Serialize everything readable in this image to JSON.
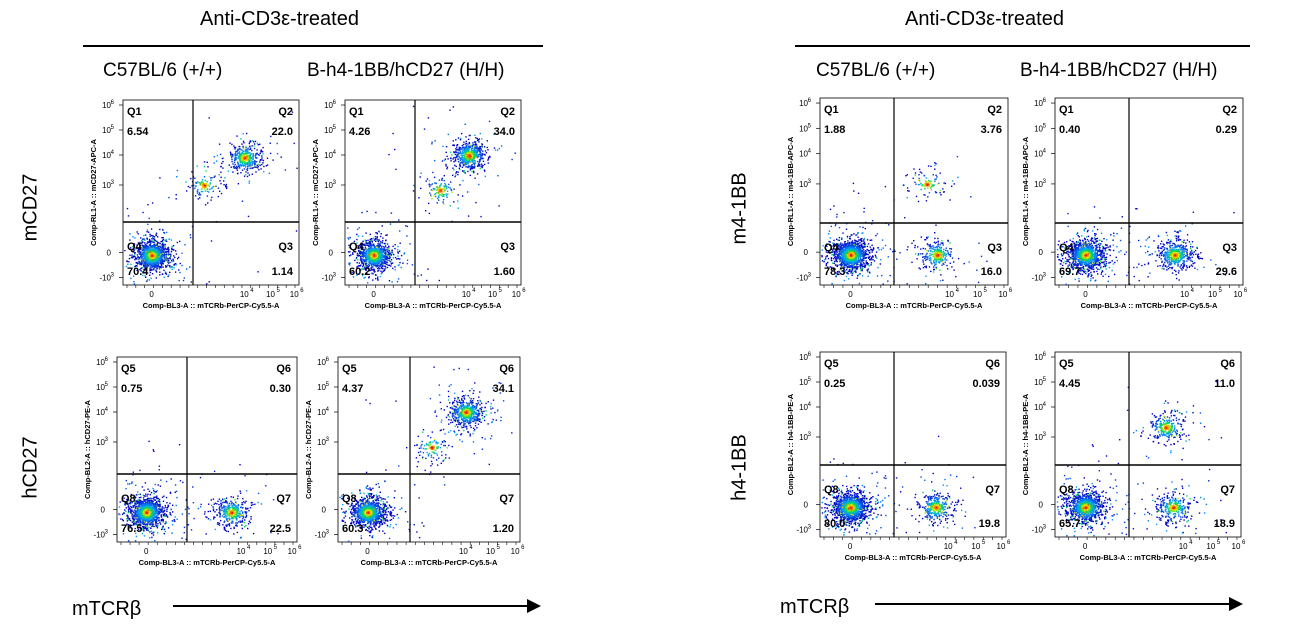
{
  "panels": [
    {
      "header": "Anti-CD3ε-treated",
      "strains": [
        "C57BL/6 (+/+)",
        "B-h4-1BB/hCD27 (H/H)"
      ],
      "rows": [
        "mCD27",
        "hCD27"
      ],
      "x_axis_label": "mTCRβ"
    },
    {
      "header": "Anti-CD3ε-treated",
      "strains": [
        "C57BL/6 (+/+)",
        "B-h4-1BB/hCD27 (H/H)"
      ],
      "rows": [
        "m4-1BB",
        "h4-1BB"
      ],
      "x_axis_label": "mTCRβ"
    }
  ],
  "chart_data": [
    {
      "type": "scatter",
      "marker": "mCD27",
      "strain": "C57BL/6 (+/+)",
      "xlabel": "Comp-BL3-A :: mTCRb-PerCP-Cy5.5-A",
      "ylabel": "Comp-RL1-A :: mCD27-APC-A",
      "quadrants": {
        "Q1": "6.54",
        "Q2": "22.0",
        "Q3": "1.14",
        "Q4": "70.4"
      },
      "populations": [
        {
          "x": 0,
          "y": 0,
          "w": 0.704
        },
        {
          "x": 3.9,
          "y": 3.9,
          "w": 0.22
        },
        {
          "x": 2.2,
          "y": 2.8,
          "w": 0.065
        }
      ]
    },
    {
      "type": "scatter",
      "marker": "mCD27",
      "strain": "B-h4-1BB/hCD27 (H/H)",
      "xlabel": "Comp-BL3-A :: mTCRb-PerCP-Cy5.5-A",
      "ylabel": "Comp-RL1-A :: mCD27-APC-A",
      "quadrants": {
        "Q1": "4.26",
        "Q2": "34.0",
        "Q3": "1.60",
        "Q4": "60.2"
      },
      "populations": [
        {
          "x": 0,
          "y": 0,
          "w": 0.602
        },
        {
          "x": 4.0,
          "y": 4.0,
          "w": 0.34
        },
        {
          "x": 2.8,
          "y": 2.6,
          "w": 0.06
        }
      ]
    },
    {
      "type": "scatter",
      "marker": "hCD27",
      "strain": "C57BL/6 (+/+)",
      "xlabel": "Comp-BL3-A :: mTCRb-PerCP-Cy5.5-A",
      "ylabel": "Comp-BL2-A :: hCD27-PE-A",
      "quadrants": {
        "Q5": "0.75",
        "Q6": "0.30",
        "Q7": "22.5",
        "Q8": "76.5"
      },
      "populations": [
        {
          "x": 0,
          "y": 0,
          "w": 0.765
        },
        {
          "x": 3.5,
          "y": 0,
          "w": 0.225
        }
      ]
    },
    {
      "type": "scatter",
      "marker": "hCD27",
      "strain": "B-h4-1BB/hCD27 (H/H)",
      "xlabel": "Comp-BL3-A :: mTCRb-PerCP-Cy5.5-A",
      "ylabel": "Comp-BL2-A :: hCD27-PE-A",
      "quadrants": {
        "Q5": "4.37",
        "Q6": "34.1",
        "Q7": "1.20",
        "Q8": "60.3"
      },
      "populations": [
        {
          "x": 0,
          "y": 0,
          "w": 0.603
        },
        {
          "x": 4.0,
          "y": 4.0,
          "w": 0.341
        },
        {
          "x": 2.6,
          "y": 2.6,
          "w": 0.056
        }
      ]
    },
    {
      "type": "scatter",
      "marker": "m4-1BB",
      "strain": "C57BL/6 (+/+)",
      "xlabel": "Comp-BL3-A :: mTCRb-PerCP-Cy5.5-A",
      "ylabel": "Comp-RL1-A :: m4-1BB-APC-A",
      "quadrants": {
        "Q1": "1.88",
        "Q2": "3.76",
        "Q3": "16.0",
        "Q4": "78.3"
      },
      "populations": [
        {
          "x": 0,
          "y": 0,
          "w": 0.783
        },
        {
          "x": 3.4,
          "y": 0,
          "w": 0.16
        },
        {
          "x": 3.0,
          "y": 2.8,
          "w": 0.056
        }
      ]
    },
    {
      "type": "scatter",
      "marker": "m4-1BB",
      "strain": "B-h4-1BB/hCD27 (H/H)",
      "xlabel": "Comp-BL3-A :: mTCRb-PerCP-Cy5.5-A",
      "ylabel": "Comp-RL1-A :: m4-1BB-APC-A",
      "quadrants": {
        "Q1": "0.40",
        "Q2": "0.29",
        "Q3": "29.6",
        "Q4": "69.7"
      },
      "populations": [
        {
          "x": 0,
          "y": 0,
          "w": 0.697
        },
        {
          "x": 3.5,
          "y": 0,
          "w": 0.296
        }
      ]
    },
    {
      "type": "scatter",
      "marker": "h4-1BB",
      "strain": "C57BL/6 (+/+)",
      "xlabel": "Comp-BL3-A :: mTCRb-PerCP-Cy5.5-A",
      "ylabel": "Comp-BL2-A :: h4-1BB-PE-A",
      "quadrants": {
        "Q5": "0.25",
        "Q6": "0.039",
        "Q7": "19.8",
        "Q8": "80.0"
      },
      "populations": [
        {
          "x": 0,
          "y": 0,
          "w": 0.8
        },
        {
          "x": 3.4,
          "y": 0,
          "w": 0.198
        }
      ]
    },
    {
      "type": "scatter",
      "marker": "h4-1BB",
      "strain": "B-h4-1BB/hCD27 (H/H)",
      "xlabel": "Comp-BL3-A :: mTCRb-PerCP-Cy5.5-A",
      "ylabel": "Comp-BL2-A :: h4-1BB-PE-A",
      "quadrants": {
        "Q5": "4.45",
        "Q6": "11.0",
        "Q7": "18.9",
        "Q8": "65.7"
      },
      "populations": [
        {
          "x": 0,
          "y": 0,
          "w": 0.657
        },
        {
          "x": 3.5,
          "y": 0,
          "w": 0.189
        },
        {
          "x": 3.2,
          "y": 3.2,
          "w": 0.154
        }
      ]
    }
  ]
}
